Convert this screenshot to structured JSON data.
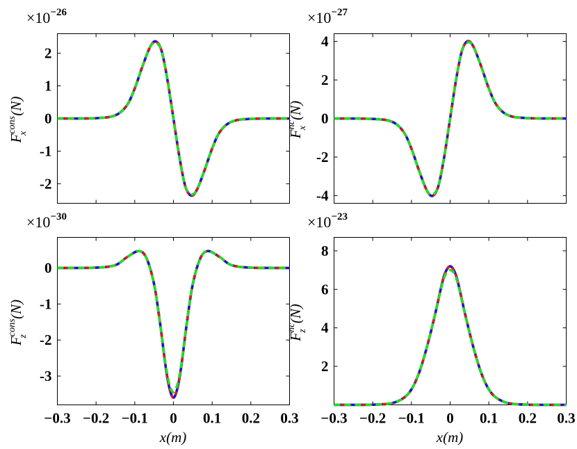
{
  "series_colors": {
    "blue": "#1010ee",
    "red": "#ee1010",
    "green": "#22dd22"
  },
  "chart_data": [
    {
      "type": "line",
      "multiplier": {
        "base": "×10",
        "exponent": "−26"
      },
      "ylabel": {
        "symbol": "F",
        "superscript": "cons",
        "subscript": "x",
        "unit": "(N)"
      },
      "xlabel": "",
      "xlim": [
        -0.3,
        0.3
      ],
      "ylim": [
        -2.6,
        2.6
      ],
      "xticks": [
        {
          "v": -0.3,
          "label": ""
        },
        {
          "v": -0.2,
          "label": ""
        },
        {
          "v": -0.1,
          "label": ""
        },
        {
          "v": 0,
          "label": ""
        },
        {
          "v": 0.1,
          "label": ""
        },
        {
          "v": 0.2,
          "label": ""
        },
        {
          "v": 0.3,
          "label": ""
        }
      ],
      "yticks": [
        {
          "v": -2,
          "label": "-2"
        },
        {
          "v": -1,
          "label": "-1"
        },
        {
          "v": 0,
          "label": "0"
        },
        {
          "v": 1,
          "label": "1"
        },
        {
          "v": 2,
          "label": "2"
        }
      ],
      "x": [
        -0.3,
        -0.2,
        -0.15,
        -0.12,
        -0.1,
        -0.08,
        -0.06,
        -0.045,
        -0.03,
        -0.015,
        0,
        0.015,
        0.03,
        0.045,
        0.06,
        0.08,
        0.1,
        0.12,
        0.15,
        0.2,
        0.3
      ],
      "series": [
        {
          "color": "blue",
          "values": [
            0,
            0.01,
            0.1,
            0.41,
            0.92,
            1.6,
            2.2,
            2.36,
            2.05,
            1.15,
            0,
            -1.15,
            -2.05,
            -2.36,
            -2.2,
            -1.6,
            -0.92,
            -0.41,
            -0.1,
            -0.01,
            0
          ]
        },
        {
          "color": "red",
          "values": [
            0,
            0.01,
            0.1,
            0.41,
            0.92,
            1.6,
            2.2,
            2.36,
            2.05,
            1.15,
            0,
            -1.15,
            -2.05,
            -2.36,
            -2.2,
            -1.6,
            -0.92,
            -0.41,
            -0.1,
            -0.01,
            0
          ]
        },
        {
          "color": "green",
          "values": [
            0,
            0.01,
            0.1,
            0.41,
            0.92,
            1.6,
            2.2,
            2.32,
            2.05,
            1.15,
            0,
            -1.15,
            -2.05,
            -2.32,
            -2.2,
            -1.6,
            -0.92,
            -0.41,
            -0.1,
            -0.01,
            0
          ]
        }
      ]
    },
    {
      "type": "line",
      "multiplier": {
        "base": "×10",
        "exponent": "−27"
      },
      "ylabel": {
        "symbol": "F",
        "superscript": "nc",
        "subscript": "x",
        "unit": "(N)"
      },
      "xlabel": "",
      "xlim": [
        -0.3,
        0.3
      ],
      "ylim": [
        -4.4,
        4.4
      ],
      "xticks": [
        {
          "v": -0.3,
          "label": ""
        },
        {
          "v": -0.2,
          "label": ""
        },
        {
          "v": -0.1,
          "label": ""
        },
        {
          "v": 0,
          "label": ""
        },
        {
          "v": 0.1,
          "label": ""
        },
        {
          "v": 0.2,
          "label": ""
        },
        {
          "v": 0.3,
          "label": ""
        }
      ],
      "yticks": [
        {
          "v": -4,
          "label": "-4"
        },
        {
          "v": -2,
          "label": "-2"
        },
        {
          "v": 0,
          "label": "0"
        },
        {
          "v": 2,
          "label": "2"
        },
        {
          "v": 4,
          "label": "4"
        }
      ],
      "x": [
        -0.3,
        -0.2,
        -0.15,
        -0.12,
        -0.1,
        -0.08,
        -0.06,
        -0.045,
        -0.03,
        -0.015,
        0,
        0.015,
        0.03,
        0.045,
        0.06,
        0.08,
        0.1,
        0.12,
        0.15,
        0.2,
        0.3
      ],
      "series": [
        {
          "color": "blue",
          "values": [
            0,
            -0.02,
            -0.17,
            -0.7,
            -1.56,
            -2.72,
            -3.74,
            -4.01,
            -3.48,
            -1.96,
            0,
            1.96,
            3.48,
            4.01,
            3.74,
            2.72,
            1.56,
            0.7,
            0.17,
            0.02,
            0
          ]
        },
        {
          "color": "red",
          "values": [
            0,
            -0.02,
            -0.17,
            -0.7,
            -1.56,
            -2.72,
            -3.74,
            -4.01,
            -3.48,
            -1.96,
            0,
            1.96,
            3.48,
            4.01,
            3.74,
            2.72,
            1.56,
            0.7,
            0.17,
            0.02,
            0
          ]
        },
        {
          "color": "green",
          "values": [
            0,
            -0.02,
            -0.17,
            -0.7,
            -1.56,
            -2.72,
            -3.74,
            -3.95,
            -3.48,
            -1.96,
            0,
            1.96,
            3.48,
            3.95,
            3.74,
            2.72,
            1.56,
            0.7,
            0.17,
            0.02,
            0
          ]
        }
      ]
    },
    {
      "type": "line",
      "multiplier": {
        "base": "×10",
        "exponent": "−30"
      },
      "ylabel": {
        "symbol": "F",
        "superscript": "cons",
        "subscript": "z",
        "unit": "(N)"
      },
      "xlabel": "x(m)",
      "xlim": [
        -0.3,
        0.3
      ],
      "ylim": [
        -3.8,
        0.85
      ],
      "xticks": [
        {
          "v": -0.3,
          "label": "−0.3"
        },
        {
          "v": -0.2,
          "label": "−0.2"
        },
        {
          "v": -0.1,
          "label": "−0.1"
        },
        {
          "v": 0,
          "label": "0"
        },
        {
          "v": 0.1,
          "label": "0.1"
        },
        {
          "v": 0.2,
          "label": "0.2"
        },
        {
          "v": 0.3,
          "label": "0.3"
        }
      ],
      "yticks": [
        {
          "v": -3,
          "label": "-3"
        },
        {
          "v": -2,
          "label": "-2"
        },
        {
          "v": -1,
          "label": "-1"
        },
        {
          "v": 0,
          "label": "0"
        }
      ],
      "x": [
        -0.3,
        -0.2,
        -0.15,
        -0.12,
        -0.09,
        -0.07,
        -0.05,
        -0.035,
        -0.02,
        -0.01,
        0,
        0.01,
        0.02,
        0.035,
        0.05,
        0.07,
        0.09,
        0.12,
        0.15,
        0.2,
        0.3
      ],
      "series": [
        {
          "color": "blue",
          "values": [
            0,
            0.01,
            0.08,
            0.3,
            0.47,
            0.28,
            -0.45,
            -1.5,
            -2.75,
            -3.35,
            -3.6,
            -3.35,
            -2.75,
            -1.5,
            -0.45,
            0.28,
            0.47,
            0.3,
            0.08,
            0.01,
            0
          ]
        },
        {
          "color": "red",
          "values": [
            0,
            0.01,
            0.08,
            0.3,
            0.47,
            0.28,
            -0.45,
            -1.5,
            -2.75,
            -3.35,
            -3.6,
            -3.35,
            -2.75,
            -1.5,
            -0.45,
            0.28,
            0.47,
            0.3,
            0.08,
            0.01,
            0
          ]
        },
        {
          "color": "green",
          "values": [
            0,
            0.01,
            0.08,
            0.3,
            0.47,
            0.28,
            -0.45,
            -1.5,
            -2.7,
            -3.25,
            -3.45,
            -3.25,
            -2.7,
            -1.5,
            -0.45,
            0.28,
            0.47,
            0.3,
            0.08,
            0.01,
            0
          ]
        }
      ]
    },
    {
      "type": "line",
      "multiplier": {
        "base": "×10",
        "exponent": "−23"
      },
      "ylabel": {
        "symbol": "F",
        "superscript": "nc",
        "subscript": "z",
        "unit": "(N)"
      },
      "xlabel": "x(m)",
      "xlim": [
        -0.3,
        0.3
      ],
      "ylim": [
        0,
        8.7
      ],
      "xticks": [
        {
          "v": -0.3,
          "label": "−0.3"
        },
        {
          "v": -0.2,
          "label": "−0.2"
        },
        {
          "v": -0.1,
          "label": "−0.1"
        },
        {
          "v": 0,
          "label": "0"
        },
        {
          "v": 0.1,
          "label": "0.1"
        },
        {
          "v": 0.2,
          "label": "0.2"
        },
        {
          "v": 0.3,
          "label": "0.3"
        }
      ],
      "yticks": [
        {
          "v": 2,
          "label": "2"
        },
        {
          "v": 4,
          "label": "4"
        },
        {
          "v": 6,
          "label": "6"
        },
        {
          "v": 8,
          "label": "8"
        }
      ],
      "x": [
        -0.3,
        -0.2,
        -0.15,
        -0.12,
        -0.1,
        -0.08,
        -0.06,
        -0.04,
        -0.02,
        -0.01,
        0,
        0.01,
        0.02,
        0.04,
        0.06,
        0.08,
        0.1,
        0.12,
        0.15,
        0.2,
        0.3
      ],
      "series": [
        {
          "color": "blue",
          "values": [
            0,
            0.01,
            0.09,
            0.36,
            0.8,
            1.68,
            3.0,
            4.6,
            6.38,
            6.98,
            7.2,
            6.98,
            6.38,
            4.6,
            3.0,
            1.68,
            0.8,
            0.36,
            0.09,
            0.01,
            0
          ]
        },
        {
          "color": "red",
          "values": [
            0,
            0.01,
            0.09,
            0.36,
            0.8,
            1.68,
            3.0,
            4.6,
            6.38,
            6.98,
            7.2,
            6.98,
            6.38,
            4.6,
            3.0,
            1.68,
            0.8,
            0.36,
            0.09,
            0.01,
            0
          ]
        },
        {
          "color": "green",
          "values": [
            0,
            0.01,
            0.09,
            0.36,
            0.8,
            1.68,
            3.0,
            4.6,
            6.3,
            6.85,
            7.0,
            6.85,
            6.3,
            4.6,
            3.0,
            1.68,
            0.8,
            0.36,
            0.09,
            0.01,
            0
          ]
        }
      ]
    }
  ]
}
